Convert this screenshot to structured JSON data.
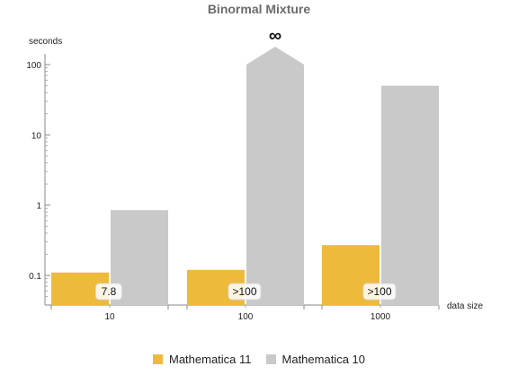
{
  "chart_data": {
    "type": "bar",
    "title": "Binormal Mixture",
    "ylabel": "seconds",
    "xlabel": "data size",
    "yscale": "log",
    "ylim": [
      0.04,
      200
    ],
    "yticks": [
      {
        "value": 0.1,
        "label": "0.1"
      },
      {
        "value": 1,
        "label": "1"
      },
      {
        "value": 10,
        "label": "10"
      },
      {
        "value": 100,
        "label": "100"
      }
    ],
    "categories": [
      "10",
      "100",
      "1000"
    ],
    "series": [
      {
        "name": "Mathematica 11",
        "color": "#EDBA3C",
        "values": [
          0.11,
          0.12,
          0.27
        ]
      },
      {
        "name": "Mathematica 10",
        "color": "#C9C9C9",
        "values": [
          0.85,
          100,
          50
        ]
      }
    ],
    "annotations": [
      {
        "category": "10",
        "text": "7.8"
      },
      {
        "category": "100",
        "text": ">100"
      },
      {
        "category": "1000",
        "text": ">100"
      }
    ],
    "infinite_bar": {
      "category": "100",
      "series": "Mathematica 10",
      "marker": "∞"
    },
    "grid": false,
    "legend_position": "bottom"
  }
}
